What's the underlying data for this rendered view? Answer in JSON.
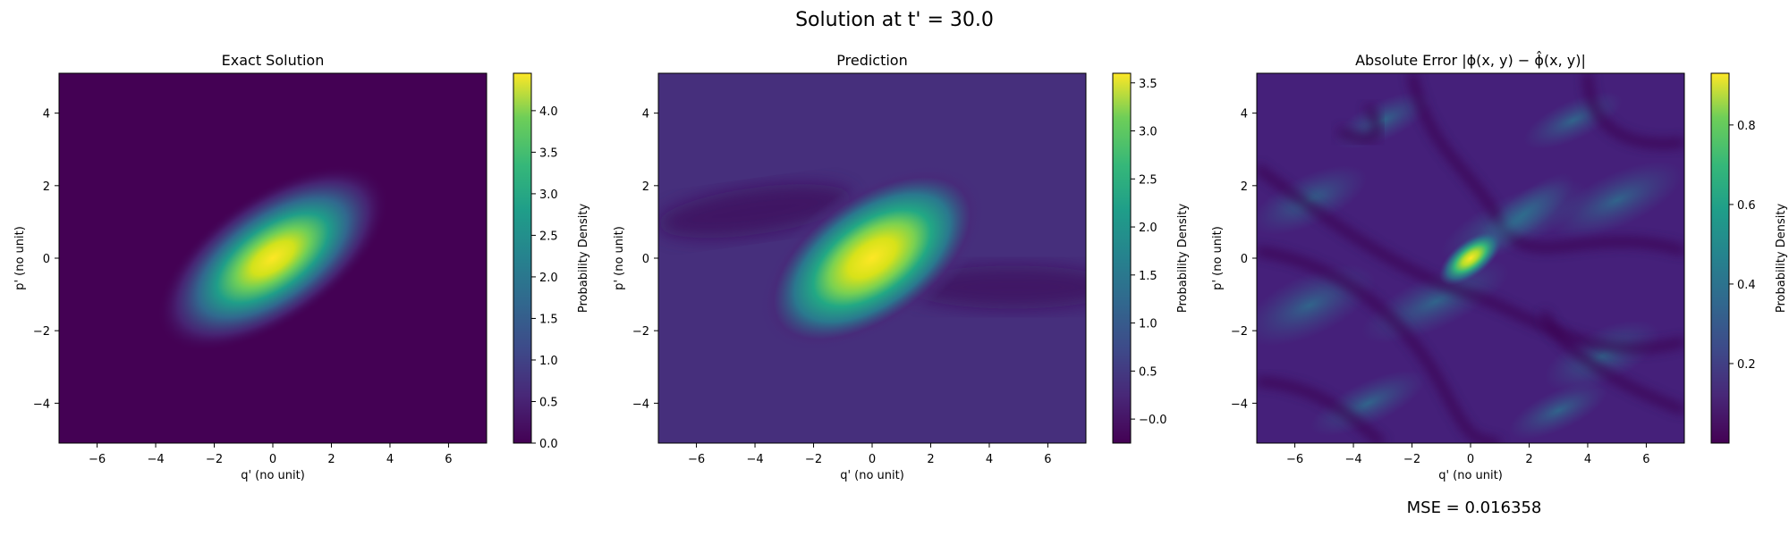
{
  "suptitle": "Solution at t' = 30.0",
  "mse_text": "MSE = 0.016358",
  "chart_data": [
    {
      "type": "heatmap",
      "title": "Exact Solution",
      "xlabel": "q' (no unit)",
      "ylabel": "p' (no unit)",
      "colorbar_label": "Probability Density",
      "colormap": "viridis",
      "xlim": [
        -7.3,
        7.3
      ],
      "ylim": [
        -5.1,
        5.1
      ],
      "xticks": [
        "−6",
        "−4",
        "−2",
        "0",
        "2",
        "4",
        "6"
      ],
      "xtick_values": [
        -6,
        -4,
        -2,
        0,
        2,
        4,
        6
      ],
      "yticks": [
        "−4",
        "−2",
        "0",
        "2",
        "4"
      ],
      "ytick_values": [
        -4,
        -2,
        0,
        2,
        4
      ],
      "vmin": 0.0,
      "vmax": 4.45,
      "cbar_ticks": [
        "0.0",
        "0.5",
        "1.0",
        "1.5",
        "2.0",
        "2.5",
        "3.0",
        "3.5",
        "4.0"
      ],
      "cbar_tick_values": [
        0.0,
        0.5,
        1.0,
        1.5,
        2.0,
        2.5,
        3.0,
        3.5,
        4.0
      ],
      "peak": {
        "q": 0.0,
        "p": 0.0,
        "value": 4.4
      },
      "blob_axis_angle_deg": 35
    },
    {
      "type": "heatmap",
      "title": "Prediction",
      "xlabel": "q' (no unit)",
      "ylabel": "p' (no unit)",
      "colorbar_label": "Probability Density",
      "colormap": "viridis",
      "xlim": [
        -7.3,
        7.3
      ],
      "ylim": [
        -5.1,
        5.1
      ],
      "xticks": [
        "−6",
        "−4",
        "−2",
        "0",
        "2",
        "4",
        "6"
      ],
      "xtick_values": [
        -6,
        -4,
        -2,
        0,
        2,
        4,
        6
      ],
      "yticks": [
        "−4",
        "−2",
        "0",
        "2",
        "4"
      ],
      "ytick_values": [
        -4,
        -2,
        0,
        2,
        4
      ],
      "vmin": -0.25,
      "vmax": 3.6,
      "cbar_ticks": [
        "−0.0",
        "0.5",
        "1.0",
        "1.5",
        "2.0",
        "2.5",
        "3.0",
        "3.5"
      ],
      "cbar_tick_values": [
        0.0,
        0.5,
        1.0,
        1.5,
        2.0,
        2.5,
        3.0,
        3.5
      ],
      "peak": {
        "q": 0.0,
        "p": 0.0,
        "value": 3.5
      },
      "blob_axis_angle_deg": 35
    },
    {
      "type": "heatmap",
      "title": "Absolute Error |ϕ(x, y) − ϕ̂(x, y)|",
      "xlabel": "q' (no unit)",
      "ylabel": "p' (no unit)",
      "colorbar_label": "Probability Density",
      "colormap": "viridis",
      "xlim": [
        -7.3,
        7.3
      ],
      "ylim": [
        -5.1,
        5.1
      ],
      "xticks": [
        "−6",
        "−4",
        "−2",
        "0",
        "2",
        "4",
        "6"
      ],
      "xtick_values": [
        -6,
        -4,
        -2,
        0,
        2,
        4,
        6
      ],
      "yticks": [
        "−4",
        "−2",
        "0",
        "2",
        "4"
      ],
      "ytick_values": [
        -4,
        -2,
        0,
        2,
        4
      ],
      "vmin": 0.0,
      "vmax": 0.93,
      "cbar_ticks": [
        "0.2",
        "0.4",
        "0.6",
        "0.8"
      ],
      "cbar_tick_values": [
        0.2,
        0.4,
        0.6,
        0.8
      ],
      "peak": {
        "q": 0.0,
        "p": 0.0,
        "value": 0.92
      },
      "blob_axis_angle_deg": 35
    }
  ]
}
